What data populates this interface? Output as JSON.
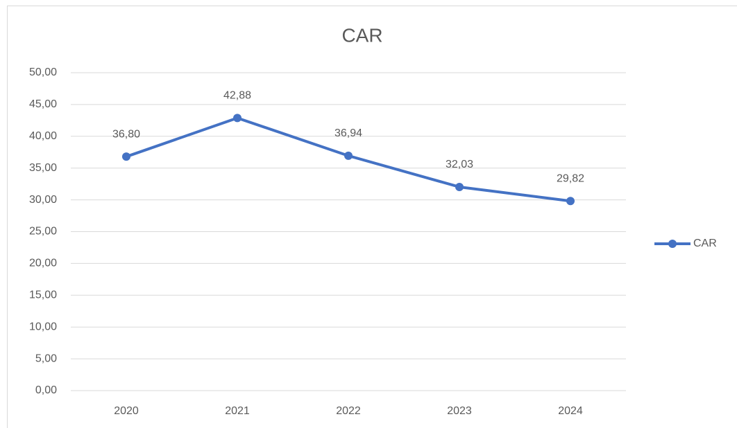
{
  "chart_data": {
    "type": "line",
    "title": "CAR",
    "categories": [
      "2020",
      "2021",
      "2022",
      "2023",
      "2024"
    ],
    "series": [
      {
        "name": "CAR",
        "color": "#4472c4",
        "values": [
          36.8,
          42.88,
          36.94,
          32.03,
          29.82
        ],
        "value_labels": [
          "36,80",
          "42,88",
          "36,94",
          "32,03",
          "29,82"
        ]
      }
    ],
    "ylim": [
      0,
      50
    ],
    "yticks": [
      {
        "value": 0,
        "label": "0,00"
      },
      {
        "value": 5,
        "label": "5,00"
      },
      {
        "value": 10,
        "label": "10,00"
      },
      {
        "value": 15,
        "label": "15,00"
      },
      {
        "value": 20,
        "label": "20,00"
      },
      {
        "value": 25,
        "label": "25,00"
      },
      {
        "value": 30,
        "label": "30,00"
      },
      {
        "value": 35,
        "label": "35,00"
      },
      {
        "value": 40,
        "label": "40,00"
      },
      {
        "value": 45,
        "label": "45,00"
      },
      {
        "value": 50,
        "label": "50,00"
      }
    ],
    "grid": true,
    "legend": "right"
  }
}
